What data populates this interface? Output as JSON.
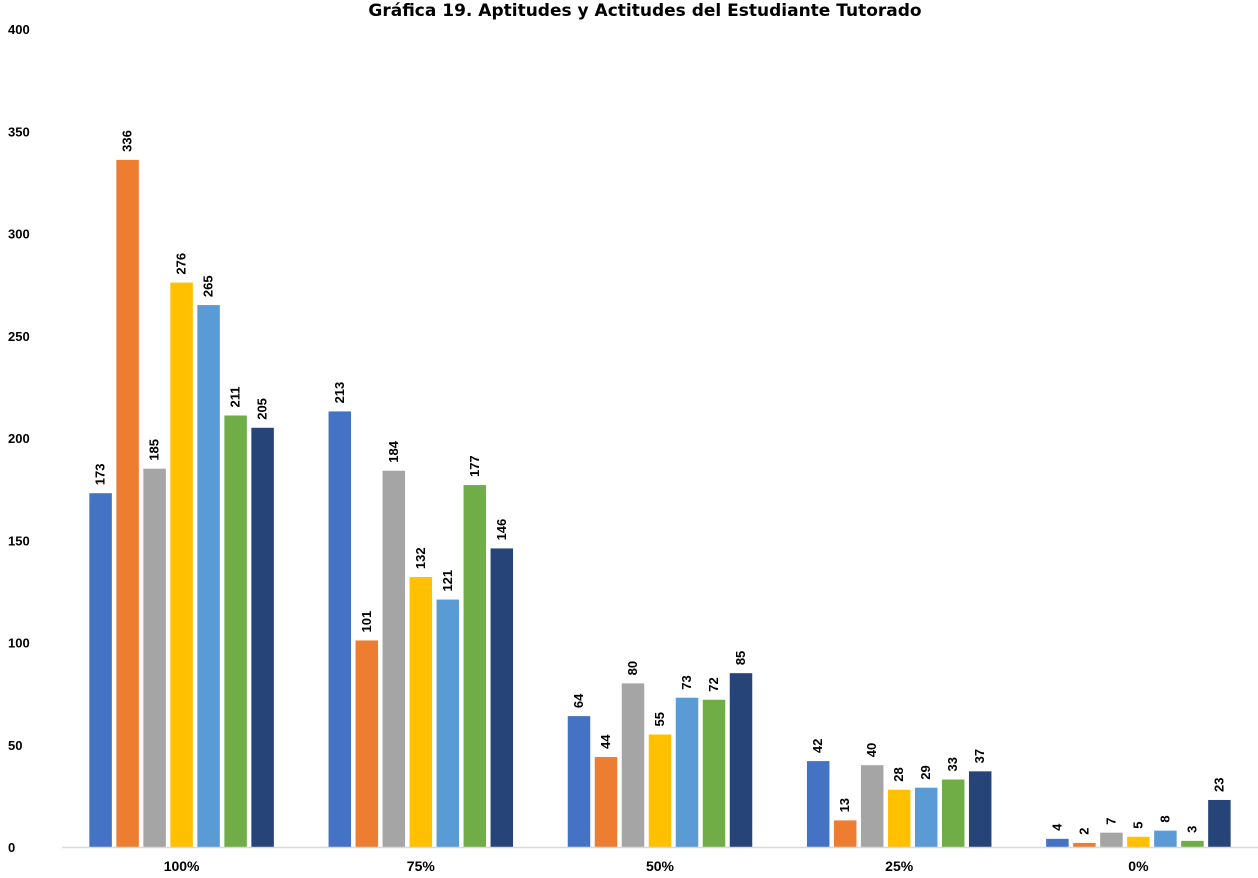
{
  "chart_data": {
    "type": "bar",
    "title": "Gráfica 19. Aptitudes y Actitudes del Estudiante Tutorado",
    "categories": [
      "100%",
      "75%",
      "50%",
      "25%",
      "0%"
    ],
    "ylim": [
      0,
      400
    ],
    "yticks": [
      0,
      50,
      100,
      150,
      200,
      250,
      300,
      350,
      400
    ],
    "grid": false,
    "legend": "none",
    "series": [
      {
        "color": "#4472C4",
        "values": [
          173,
          213,
          64,
          42,
          4
        ]
      },
      {
        "color": "#ED7D31",
        "values": [
          336,
          101,
          44,
          13,
          2
        ]
      },
      {
        "color": "#A5A5A5",
        "values": [
          185,
          184,
          80,
          40,
          7
        ]
      },
      {
        "color": "#FFC000",
        "values": [
          276,
          132,
          55,
          28,
          5
        ]
      },
      {
        "color": "#5B9BD5",
        "values": [
          265,
          121,
          73,
          29,
          8
        ]
      },
      {
        "color": "#70AD47",
        "values": [
          211,
          177,
          72,
          33,
          3
        ]
      },
      {
        "color": "#264478",
        "values": [
          205,
          146,
          85,
          37,
          23
        ]
      }
    ]
  }
}
